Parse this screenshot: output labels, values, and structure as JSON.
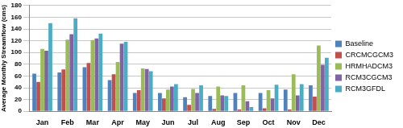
{
  "chart_data": {
    "type": "bar",
    "y_label": "Average Monthly Streamflow (cms)",
    "categories": [
      "Jan",
      "Feb",
      "Mar",
      "Apr",
      "May",
      "Jun",
      "Jul",
      "Aug",
      "Sep",
      "Oct",
      "Nov",
      "Dec"
    ],
    "series": [
      {
        "name": "Baseline",
        "color": "#4f81bd",
        "values": [
          64,
          66,
          75,
          53,
          31,
          31,
          24,
          26,
          31,
          31,
          37,
          44
        ]
      },
      {
        "name": "CRCMCGCM3",
        "color": "#c0504d",
        "values": [
          50,
          71,
          82,
          63,
          36,
          22,
          11,
          4,
          3,
          5,
          3,
          25
        ]
      },
      {
        "name": "HRMHADCM3",
        "color": "#9bbb59",
        "values": [
          106,
          122,
          121,
          84,
          73,
          37,
          38,
          42,
          44,
          36,
          63,
          112
        ]
      },
      {
        "name": "RCM3CGCM3",
        "color": "#8064a2",
        "values": [
          103,
          131,
          124,
          115,
          72,
          42,
          31,
          27,
          17,
          22,
          27,
          79
        ]
      },
      {
        "name": "RCM3GFDL",
        "color": "#4bacc6",
        "values": [
          150,
          158,
          132,
          118,
          68,
          46,
          44,
          26,
          7,
          45,
          46,
          91
        ]
      }
    ],
    "ylim": [
      0,
      180
    ],
    "yticks": [
      0,
      20,
      40,
      60,
      80,
      100,
      120,
      140,
      160,
      180
    ],
    "grid": true,
    "legend": "right"
  }
}
